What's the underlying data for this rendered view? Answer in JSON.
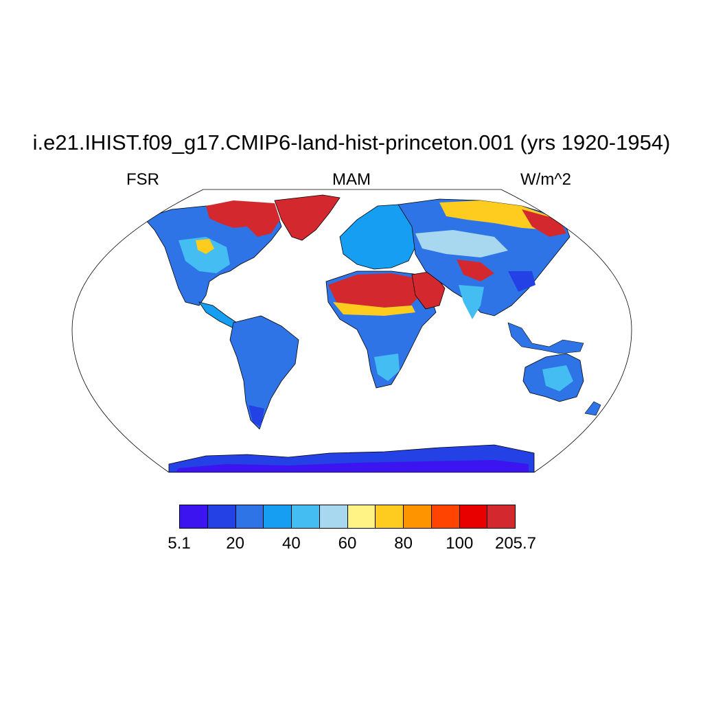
{
  "title": "i.e21.IHIST.f09_g17.CMIP6-land-hist-princeton.001 (yrs 1920-1954)",
  "variable": "FSR",
  "season": "MAM",
  "units": "W/m^2",
  "colorbar": {
    "colors": [
      "#3c14f0",
      "#2441e6",
      "#2e74e6",
      "#169ff2",
      "#43bdf2",
      "#a8d8f0",
      "#fef384",
      "#fecb1f",
      "#fe9500",
      "#fe4400",
      "#e80000",
      "#d3292e"
    ],
    "labels": [
      "5.1",
      "20",
      "40",
      "60",
      "80",
      "100",
      "205.7"
    ]
  },
  "map": {
    "ocean_color": "#ffffff",
    "coast_color": "#000000"
  }
}
